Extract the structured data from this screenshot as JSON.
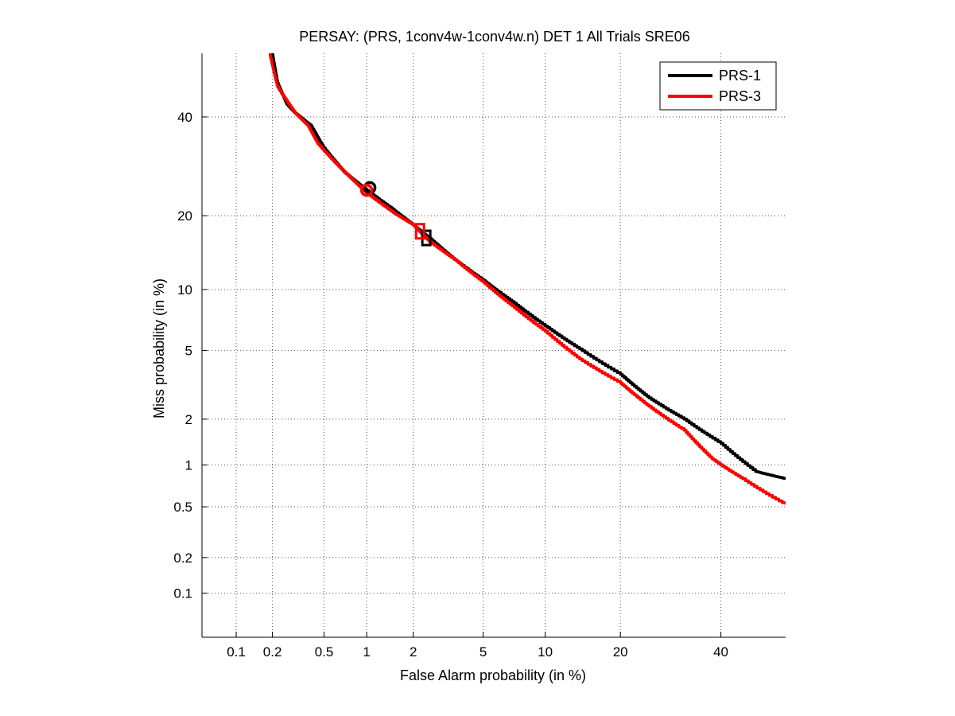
{
  "chart_data": {
    "type": "line",
    "title": "PERSAY: (PRS, 1conv4w-1conv4w.n) DET 1 All Trials SRE06",
    "xlabel": "False Alarm probability (in %)",
    "ylabel": "Miss probability (in %)",
    "xscale": "probit",
    "yscale": "probit",
    "xlim": [
      0.05,
      55
    ],
    "ylim": [
      0.04,
      55
    ],
    "xticks": [
      0.1,
      0.2,
      0.5,
      1,
      2,
      5,
      10,
      20,
      40
    ],
    "xtick_labels": [
      "0.1",
      "0.2",
      "0.5",
      "1",
      "2",
      "5",
      "10",
      "20",
      "40"
    ],
    "yticks": [
      0.1,
      0.2,
      0.5,
      1,
      2,
      5,
      10,
      20,
      40
    ],
    "ytick_labels": [
      "0.1",
      "0.2",
      "0.5",
      "1",
      "2",
      "5",
      "10",
      "20",
      "40"
    ],
    "grid": true,
    "legend": "top-right",
    "series": [
      {
        "name": "PRS-1",
        "color": "#000000",
        "points": [
          [
            0.2,
            55
          ],
          [
            0.22,
            48
          ],
          [
            0.26,
            43
          ],
          [
            0.3,
            41
          ],
          [
            0.4,
            38
          ],
          [
            0.5,
            33
          ],
          [
            0.7,
            28
          ],
          [
            1.0,
            24.5
          ],
          [
            1.5,
            21
          ],
          [
            2.0,
            18.5
          ],
          [
            2.5,
            16.5
          ],
          [
            3.5,
            13.5
          ],
          [
            5,
            11
          ],
          [
            7,
            8.8
          ],
          [
            10,
            6.7
          ],
          [
            14,
            5.1
          ],
          [
            20,
            3.7
          ],
          [
            25,
            2.7
          ],
          [
            32,
            2.0
          ],
          [
            40,
            1.4
          ],
          [
            48,
            0.9
          ],
          [
            55,
            0.8
          ]
        ],
        "markers": [
          {
            "shape": "circle",
            "x": 1.05,
            "y": 25.0
          },
          {
            "shape": "square",
            "x": 2.4,
            "y": 16.5
          }
        ]
      },
      {
        "name": "PRS-3",
        "color": "#ff0000",
        "points": [
          [
            0.19,
            55
          ],
          [
            0.22,
            47
          ],
          [
            0.3,
            41
          ],
          [
            0.38,
            38
          ],
          [
            0.45,
            34
          ],
          [
            0.6,
            30
          ],
          [
            0.8,
            26.5
          ],
          [
            1.0,
            24
          ],
          [
            1.5,
            20.5
          ],
          [
            2.0,
            18.5
          ],
          [
            2.5,
            16
          ],
          [
            3.5,
            13.5
          ],
          [
            5,
            10.8
          ],
          [
            7,
            8.4
          ],
          [
            10,
            6.3
          ],
          [
            14,
            4.5
          ],
          [
            20,
            3.3
          ],
          [
            25,
            2.4
          ],
          [
            32,
            1.7
          ],
          [
            38,
            1.1
          ],
          [
            45,
            0.8
          ],
          [
            55,
            0.52
          ]
        ],
        "markers": [
          {
            "shape": "circle",
            "x": 1.0,
            "y": 24.5
          },
          {
            "shape": "square",
            "x": 2.2,
            "y": 17.5
          }
        ]
      }
    ]
  }
}
